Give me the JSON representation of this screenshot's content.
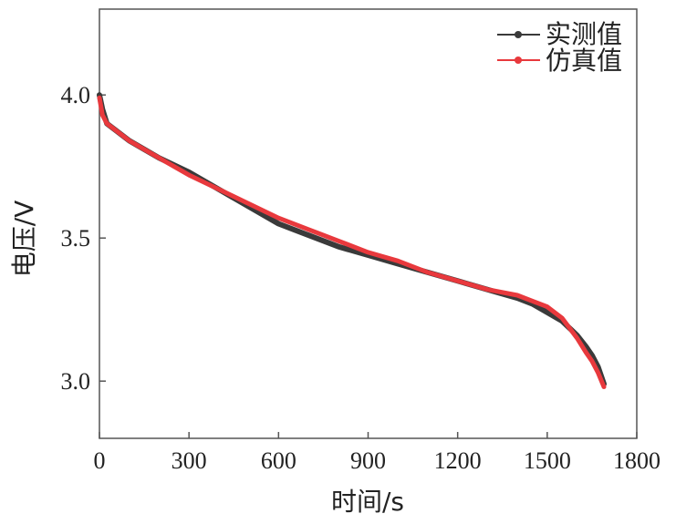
{
  "chart_data": {
    "type": "line",
    "xlabel": "时间/s",
    "ylabel": "电压/V",
    "xlim": [
      0,
      1800
    ],
    "ylim": [
      2.8,
      4.3
    ],
    "x_ticks": [
      0,
      300,
      600,
      900,
      1200,
      1500,
      1800
    ],
    "y_ticks": [
      3.0,
      3.5,
      4.0
    ],
    "x_tick_labels": [
      "0",
      "300",
      "600",
      "900",
      "1200",
      "1500",
      "1800"
    ],
    "y_tick_labels": [
      "3.0",
      "3.5",
      "4.0"
    ],
    "legend_position": "top-right",
    "grid": false,
    "series": [
      {
        "name": "实测值",
        "color": "#3a3a3a",
        "x": [
          0,
          10,
          25,
          50,
          100,
          150,
          200,
          300,
          400,
          500,
          600,
          700,
          800,
          900,
          1000,
          1100,
          1200,
          1300,
          1400,
          1450,
          1500,
          1550,
          1600,
          1630,
          1650,
          1670,
          1690
        ],
        "y": [
          4.0,
          3.95,
          3.9,
          3.88,
          3.84,
          3.81,
          3.78,
          3.73,
          3.67,
          3.61,
          3.55,
          3.51,
          3.47,
          3.44,
          3.41,
          3.38,
          3.35,
          3.32,
          3.29,
          3.27,
          3.24,
          3.21,
          3.16,
          3.12,
          3.09,
          3.05,
          2.99
        ]
      },
      {
        "name": "仿真值",
        "color": "#e8393d",
        "x": [
          0,
          10,
          25,
          50,
          100,
          150,
          200,
          300,
          400,
          500,
          600,
          700,
          800,
          900,
          1000,
          1100,
          1200,
          1300,
          1400,
          1450,
          1500,
          1550,
          1600,
          1630,
          1650,
          1670,
          1690
        ],
        "y": [
          3.99,
          3.93,
          3.9,
          3.88,
          3.84,
          3.81,
          3.78,
          3.72,
          3.67,
          3.62,
          3.57,
          3.53,
          3.49,
          3.45,
          3.42,
          3.38,
          3.35,
          3.32,
          3.3,
          3.28,
          3.26,
          3.22,
          3.15,
          3.1,
          3.07,
          3.03,
          2.98
        ]
      }
    ]
  }
}
